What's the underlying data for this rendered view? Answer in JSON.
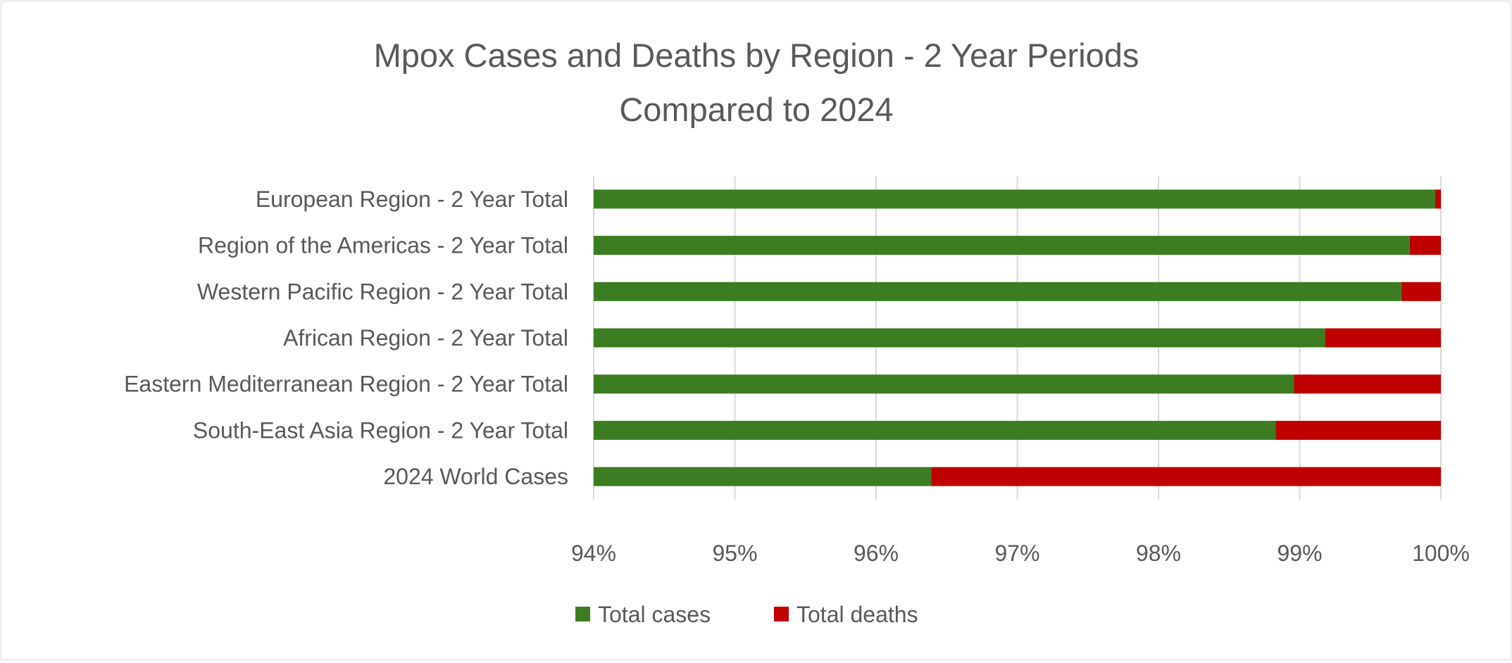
{
  "chart_data": {
    "type": "bar",
    "orientation": "horizontal",
    "stacked": "percent",
    "title": [
      "Mpox Cases and Deaths by Region - 2 Year Periods",
      "Compared to 2024"
    ],
    "xlabel": "",
    "ylabel": "",
    "xlim": [
      94,
      100
    ],
    "x_ticks": [
      "94%",
      "95%",
      "96%",
      "97%",
      "98%",
      "99%",
      "100%"
    ],
    "grid": true,
    "legend_position": "bottom",
    "categories": [
      "European Region - 2 Year Total",
      "Region of the Americas - 2 Year Total",
      "Western Pacific Region - 2 Year Total",
      "African Region - 2 Year Total",
      "Eastern Mediterranean Region - 2 Year Total",
      "South-East Asia Region - 2 Year Total",
      "2024 World Cases"
    ],
    "series": [
      {
        "name": "Total cases",
        "color": "#3c7d22",
        "values": [
          99.96,
          99.78,
          99.72,
          99.18,
          98.96,
          98.83,
          96.39
        ]
      },
      {
        "name": "Total deaths",
        "color": "#c00000",
        "values": [
          0.04,
          0.22,
          0.28,
          0.82,
          1.04,
          1.17,
          3.61
        ]
      }
    ]
  }
}
